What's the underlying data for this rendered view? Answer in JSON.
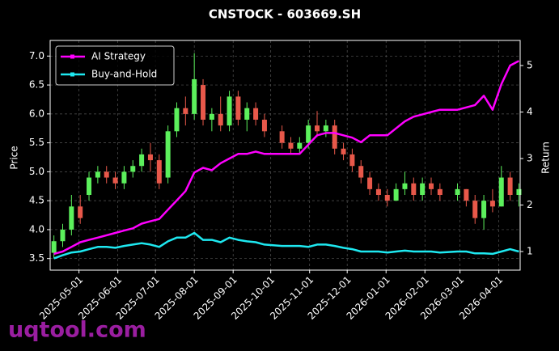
{
  "chart_data": {
    "type": "candlestick",
    "title": "CNSTOCK - 603669.SH",
    "ylabel": "Price",
    "y2label": "Return",
    "watermark": "uqtool.com",
    "up_color": "#5cf05c",
    "down_color": "#e8584a",
    "grid": true,
    "legend": "upper left",
    "x": [
      "2025-04-11",
      "2025-04-18",
      "2025-04-25",
      "2025-05-02",
      "2025-05-09",
      "2025-05-16",
      "2025-05-23",
      "2025-05-30",
      "2025-06-06",
      "2025-06-13",
      "2025-06-20",
      "2025-06-27",
      "2025-07-04",
      "2025-07-11",
      "2025-07-18",
      "2025-07-25",
      "2025-08-01",
      "2025-08-08",
      "2025-08-15",
      "2025-08-22",
      "2025-08-29",
      "2025-09-05",
      "2025-09-12",
      "2025-09-19",
      "2025-09-26",
      "2025-10-10",
      "2025-10-17",
      "2025-10-24",
      "2025-10-31",
      "2025-11-07",
      "2025-11-14",
      "2025-11-21",
      "2025-11-28",
      "2025-12-05",
      "2025-12-12",
      "2025-12-19",
      "2025-12-26",
      "2026-01-02",
      "2026-01-09",
      "2026-01-16",
      "2026-01-23",
      "2026-01-30",
      "2026-02-06",
      "2026-02-13",
      "2026-02-27",
      "2026-03-06",
      "2026-03-13",
      "2026-03-20",
      "2026-03-27",
      "2026-04-03",
      "2026-04-10",
      "2026-04-17"
    ],
    "open": [
      3.6,
      3.8,
      4.0,
      4.4,
      4.6,
      4.9,
      5.0,
      4.9,
      4.8,
      5.0,
      5.1,
      5.3,
      5.2,
      4.9,
      5.7,
      6.1,
      6.0,
      6.5,
      5.9,
      6.0,
      5.8,
      6.3,
      5.9,
      6.1,
      5.9,
      5.7,
      5.5,
      5.4,
      5.5,
      5.8,
      5.7,
      5.8,
      5.4,
      5.3,
      5.1,
      4.9,
      4.7,
      4.6,
      4.5,
      4.7,
      4.8,
      4.6,
      4.8,
      4.7,
      4.6,
      4.7,
      4.5,
      4.2,
      4.5,
      4.4,
      4.9,
      4.6
    ],
    "high": [
      3.9,
      4.1,
      4.6,
      4.6,
      5.0,
      5.1,
      5.1,
      5.0,
      5.1,
      5.2,
      5.4,
      5.5,
      5.3,
      5.8,
      6.2,
      6.3,
      7.05,
      6.6,
      6.1,
      6.3,
      6.4,
      6.4,
      6.2,
      6.2,
      6.0,
      5.8,
      5.6,
      5.6,
      5.9,
      6.05,
      5.9,
      5.9,
      5.5,
      5.4,
      5.2,
      5.0,
      4.8,
      4.7,
      4.8,
      5.0,
      4.9,
      4.9,
      4.9,
      4.8,
      4.8,
      4.7,
      4.6,
      4.6,
      4.7,
      5.1,
      5.0,
      4.8
    ],
    "low": [
      3.5,
      3.7,
      3.9,
      4.1,
      4.5,
      4.8,
      4.8,
      4.7,
      4.7,
      4.9,
      5.0,
      5.0,
      4.7,
      4.8,
      5.6,
      5.8,
      5.9,
      5.8,
      5.7,
      5.7,
      5.7,
      5.8,
      5.7,
      5.8,
      5.6,
      5.4,
      5.3,
      5.3,
      5.4,
      5.6,
      5.6,
      5.3,
      5.2,
      5.0,
      4.8,
      4.6,
      4.5,
      4.4,
      4.5,
      4.6,
      4.5,
      4.5,
      4.6,
      4.5,
      4.5,
      4.4,
      4.1,
      4.0,
      4.3,
      4.4,
      4.5,
      4.4
    ],
    "close": [
      3.8,
      4.0,
      4.4,
      4.2,
      4.9,
      5.0,
      4.9,
      4.8,
      5.0,
      5.1,
      5.3,
      5.2,
      4.8,
      5.7,
      6.1,
      6.0,
      6.6,
      5.9,
      6.0,
      5.8,
      6.3,
      5.9,
      6.1,
      5.9,
      5.7,
      5.5,
      5.4,
      5.5,
      5.8,
      5.7,
      5.8,
      5.4,
      5.3,
      5.1,
      4.9,
      4.7,
      4.6,
      4.5,
      4.7,
      4.8,
      4.6,
      4.8,
      4.7,
      4.6,
      4.7,
      4.5,
      4.2,
      4.5,
      4.4,
      4.9,
      4.6,
      4.7
    ],
    "series": [
      {
        "name": "AI Strategy",
        "color": "#ff00ff",
        "axis": "y2",
        "values": [
          0.95,
          1.0,
          1.1,
          1.2,
          1.25,
          1.3,
          1.35,
          1.4,
          1.45,
          1.5,
          1.6,
          1.65,
          1.7,
          1.9,
          2.1,
          2.3,
          2.7,
          2.8,
          2.75,
          2.9,
          3.0,
          3.1,
          3.1,
          3.15,
          3.1,
          3.1,
          3.1,
          3.1,
          3.3,
          3.5,
          3.55,
          3.55,
          3.5,
          3.45,
          3.35,
          3.5,
          3.5,
          3.5,
          3.65,
          3.8,
          3.9,
          3.95,
          4.0,
          4.05,
          4.05,
          4.1,
          4.15,
          4.35,
          4.05,
          4.6,
          5.0,
          5.1
        ]
      },
      {
        "name": "Buy-and-Hold",
        "color": "#1ee8f0",
        "axis": "y2",
        "values": [
          0.85,
          0.92,
          0.98,
          1.0,
          1.05,
          1.1,
          1.1,
          1.08,
          1.12,
          1.15,
          1.18,
          1.15,
          1.1,
          1.22,
          1.3,
          1.3,
          1.4,
          1.25,
          1.25,
          1.2,
          1.3,
          1.25,
          1.22,
          1.2,
          1.15,
          1.12,
          1.12,
          1.12,
          1.1,
          1.15,
          1.15,
          1.12,
          1.08,
          1.05,
          1.0,
          1.0,
          1.0,
          0.98,
          1.0,
          1.02,
          1.0,
          1.0,
          1.0,
          0.98,
          1.0,
          1.0,
          0.96,
          0.96,
          0.95,
          1.0,
          1.05,
          1.0
        ]
      }
    ],
    "xlim": [
      "2025-04-08",
      "2026-04-18"
    ],
    "xticks": [
      "2025-05-01",
      "2025-06-01",
      "2025-07-01",
      "2025-08-01",
      "2025-09-01",
      "2025-10-01",
      "2025-11-01",
      "2025-12-01",
      "2026-01-01",
      "2026-02-01",
      "2026-03-01",
      "2026-04-01"
    ],
    "ylim": [
      3.3,
      7.27
    ],
    "yticks": [
      3.5,
      {
        "value": 4,
        "label": "4.0"
      },
      4.5,
      {
        "value": 5,
        "label": "5.0"
      },
      5.5,
      {
        "value": 6,
        "label": "6.0"
      },
      6.5,
      {
        "value": 7,
        "label": "7.0"
      }
    ],
    "y2lim": [
      0.6,
      5.54
    ],
    "y2ticks": [
      1,
      2,
      3,
      4,
      5
    ]
  }
}
